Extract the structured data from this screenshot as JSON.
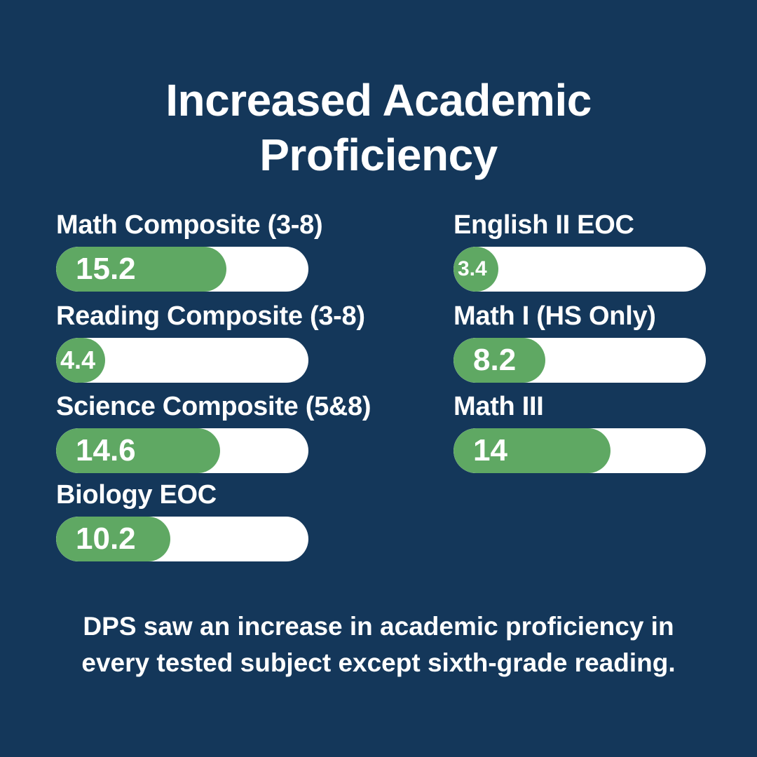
{
  "title": {
    "line1": "Increased Academic",
    "line2": "Proficiency"
  },
  "footer": {
    "line1": "DPS saw an increase in academic proficiency in",
    "line2": "every tested subject except sixth-grade reading."
  },
  "colors": {
    "background": "#14375a",
    "bar_fill": "#5fa863",
    "bar_track": "#ffffff",
    "text": "#ffffff"
  },
  "chart_data": {
    "type": "bar",
    "categories": [
      "Math Composite (3-8)",
      "Reading Composite (3-8)",
      "Science Composite (5&8)",
      "Biology EOC",
      "English II EOC",
      "Math I (HS Only)",
      "Math III"
    ],
    "values": [
      15.2,
      4.4,
      14.6,
      10.2,
      3.4,
      8.2,
      14
    ],
    "value_labels": [
      "15.2",
      "4.4",
      "14.6",
      "10.2",
      "3.4",
      "8.2",
      "14"
    ],
    "title": "Increased Academic Proficiency",
    "xlabel": "",
    "ylabel": "",
    "ylim": [
      0,
      22.5
    ],
    "grid": false,
    "legend": "none"
  }
}
